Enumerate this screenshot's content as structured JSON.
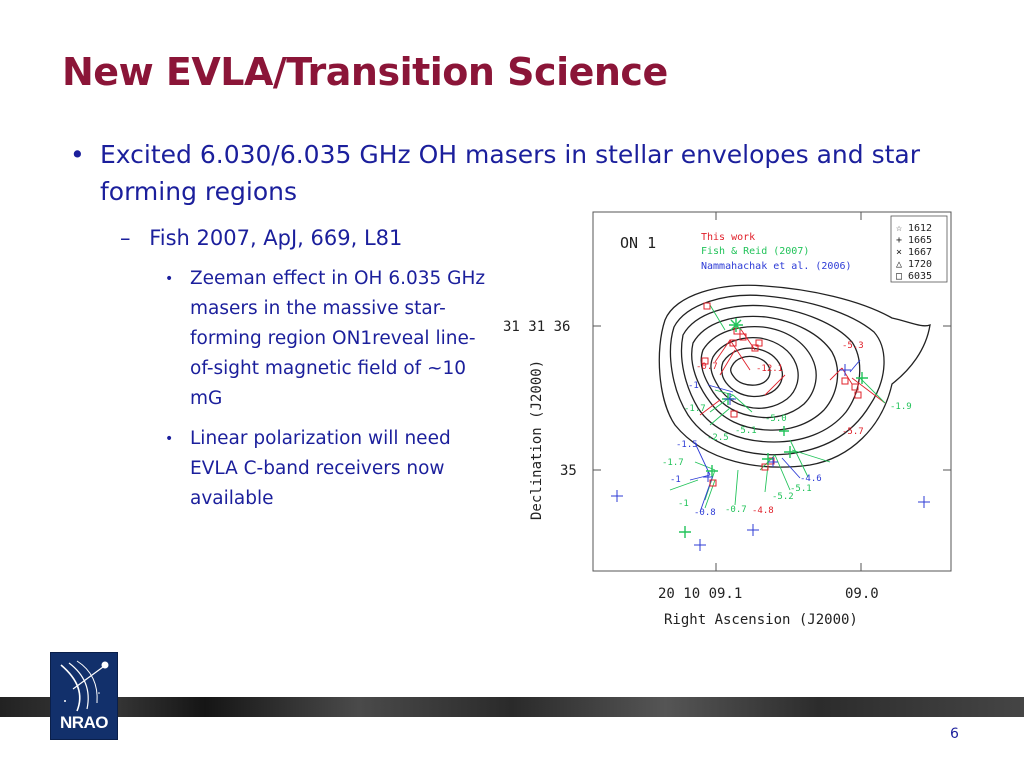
{
  "slide": {
    "title": "New EVLA/Transition Science",
    "bullet1": {
      "marker": "•",
      "text": "Excited 6.030/6.035 GHz OH masers in stellar envelopes and star forming regions"
    },
    "bullet2": {
      "marker": "–",
      "text": "Fish 2007, ApJ, 669, L81"
    },
    "bullet3": [
      {
        "marker": "•",
        "text": "Zeeman effect in OH 6.035 GHz masers in the massive star-forming region ON1reveal line-of-sight magnetic field of ~10 mG"
      },
      {
        "marker": "•",
        "text": "Linear polarization will need EVLA C-band receivers now available"
      }
    ],
    "page_number": "6",
    "logo_text": "NRAO"
  },
  "figure": {
    "panel_label": "ON 1",
    "legend_sources": [
      {
        "text": "This work",
        "color": "#e0202a"
      },
      {
        "text": "Fish & Reid (2007)",
        "color": "#22c35a"
      },
      {
        "text": "Nammahachak et al. (2006)",
        "color": "#2d3bd6"
      }
    ],
    "legend_symbols": [
      {
        "symbol": "☆",
        "text": "1612"
      },
      {
        "symbol": "+",
        "text": "1665"
      },
      {
        "symbol": "×",
        "text": "1667"
      },
      {
        "symbol": "△",
        "text": "1720"
      },
      {
        "symbol": "□",
        "text": "6035"
      }
    ],
    "y_ticks": [
      "31 31 36",
      "35"
    ],
    "x_ticks": [
      "20 10 09.1",
      "09.0"
    ],
    "xlabel": "Right Ascension (J2000)",
    "ylabel": "Declination (J2000)",
    "red_labels": [
      "-0.7",
      "-12.1",
      "-5.3",
      "-5.7",
      "-4.8"
    ],
    "blue_labels": [
      "-1",
      "-1.5",
      "-1",
      "-0.8",
      "-4.6"
    ],
    "green_labels": [
      "-1.7",
      "-1.7",
      "-2.5",
      "-5.1",
      "-5.0",
      "-1",
      "-0.7",
      "-5.2",
      "-5.1",
      "-1.9"
    ]
  }
}
